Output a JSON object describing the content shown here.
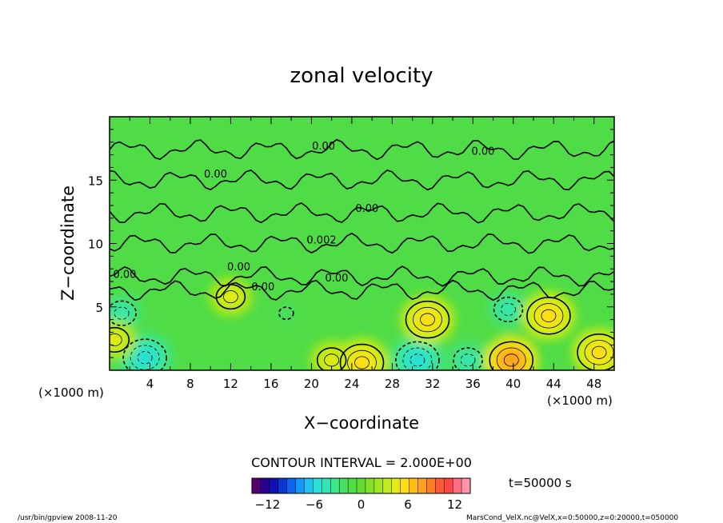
{
  "chart_data": {
    "type": "heatmap",
    "title": "zonal velocity",
    "xlabel": "X−coordinate",
    "ylabel": "Z−coordinate",
    "x_unit_left": "(×1000 m)",
    "x_unit_right": "(×1000 m)",
    "x_ticks": [
      4,
      8,
      12,
      16,
      20,
      24,
      28,
      32,
      36,
      40,
      44,
      48
    ],
    "y_ticks": [
      5,
      10,
      15
    ],
    "xlim": [
      0,
      50
    ],
    "ylim": [
      0,
      20
    ],
    "contour_interval_text": "CONTOUR INTERVAL = 2.000E+00",
    "contour_labels": [
      {
        "x": 21.2,
        "z": 17.4,
        "text": "0.00"
      },
      {
        "x": 37.0,
        "z": 17.0,
        "text": "0.00"
      },
      {
        "x": 10.5,
        "z": 15.2,
        "text": "0.00"
      },
      {
        "x": 25.5,
        "z": 12.5,
        "text": "0.00"
      },
      {
        "x": 21.0,
        "z": 10.0,
        "text": "0.002"
      },
      {
        "x": 12.8,
        "z": 7.9,
        "text": "0.00"
      },
      {
        "x": 1.5,
        "z": 7.3,
        "text": "0.00"
      },
      {
        "x": 15.2,
        "z": 6.3,
        "text": "0.00"
      },
      {
        "x": 22.5,
        "z": 7.0,
        "text": "0.00"
      }
    ],
    "field_features": [
      {
        "x": 1.2,
        "z": 4.5,
        "value": -4
      },
      {
        "x": 3.5,
        "z": 1.0,
        "value": -6
      },
      {
        "x": 12.0,
        "z": 5.8,
        "value": 4
      },
      {
        "x": 17.5,
        "z": 4.5,
        "value": -2
      },
      {
        "x": 22.0,
        "z": 0.8,
        "value": 4
      },
      {
        "x": 25.0,
        "z": 0.6,
        "value": 6
      },
      {
        "x": 30.5,
        "z": 0.8,
        "value": -6
      },
      {
        "x": 31.5,
        "z": 4.0,
        "value": 6
      },
      {
        "x": 35.5,
        "z": 0.8,
        "value": -4
      },
      {
        "x": 39.5,
        "z": 4.8,
        "value": -4
      },
      {
        "x": 39.8,
        "z": 0.8,
        "value": 8
      },
      {
        "x": 43.5,
        "z": 4.3,
        "value": 6
      },
      {
        "x": 48.5,
        "z": 1.4,
        "value": 6
      },
      {
        "x": 0.5,
        "z": 2.4,
        "value": 4
      }
    ],
    "colorbar": {
      "colors": [
        "#55006e",
        "#2a0090",
        "#1010b4",
        "#0a36d2",
        "#0a64ee",
        "#1496f8",
        "#1ec3f0",
        "#28e0d8",
        "#32e6b4",
        "#3ce68c",
        "#46e064",
        "#50dc46",
        "#64dc32",
        "#82e128",
        "#a0e61e",
        "#c3eb19",
        "#e6eb14",
        "#ffdc14",
        "#ffbe14",
        "#ffa01e",
        "#ff7d28",
        "#ff5a32",
        "#ff4646",
        "#ff6e82",
        "#ff96aa"
      ],
      "tick_labels": [
        "−12",
        "−6",
        "0",
        "6",
        "12"
      ],
      "tick_values": [
        -12,
        -6,
        0,
        6,
        12
      ],
      "range": [
        -14,
        14
      ]
    },
    "time_text": "t=50000 s",
    "footer_left": "/usr/bin/gpview   2008-11-20",
    "footer_right": "MarsCond_VelX.nc@VelX,x=0:50000,z=0:20000,t=050000"
  }
}
